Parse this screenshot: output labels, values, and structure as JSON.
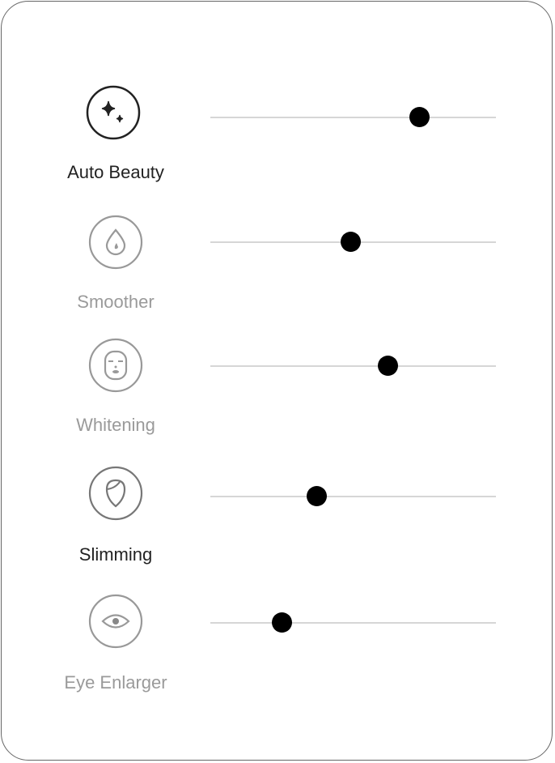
{
  "items": [
    {
      "label": "Auto Beauty",
      "icon": "sparkles-icon",
      "value": 0.73,
      "active": true
    },
    {
      "label": "Smoother",
      "icon": "droplet-icon",
      "value": 0.49,
      "active": false
    },
    {
      "label": "Whitening",
      "icon": "face-mask-icon",
      "value": 0.62,
      "active": false
    },
    {
      "label": "Slimming",
      "icon": "face-outline-icon",
      "value": 0.37,
      "active": true
    },
    {
      "label": "Eye Enlarger",
      "icon": "eye-icon",
      "value": 0.25,
      "active": false
    }
  ],
  "colors": {
    "active": "#222222",
    "inactive": "#9a9a9a",
    "thumb": "#000000",
    "track": "#d6d6d6"
  }
}
